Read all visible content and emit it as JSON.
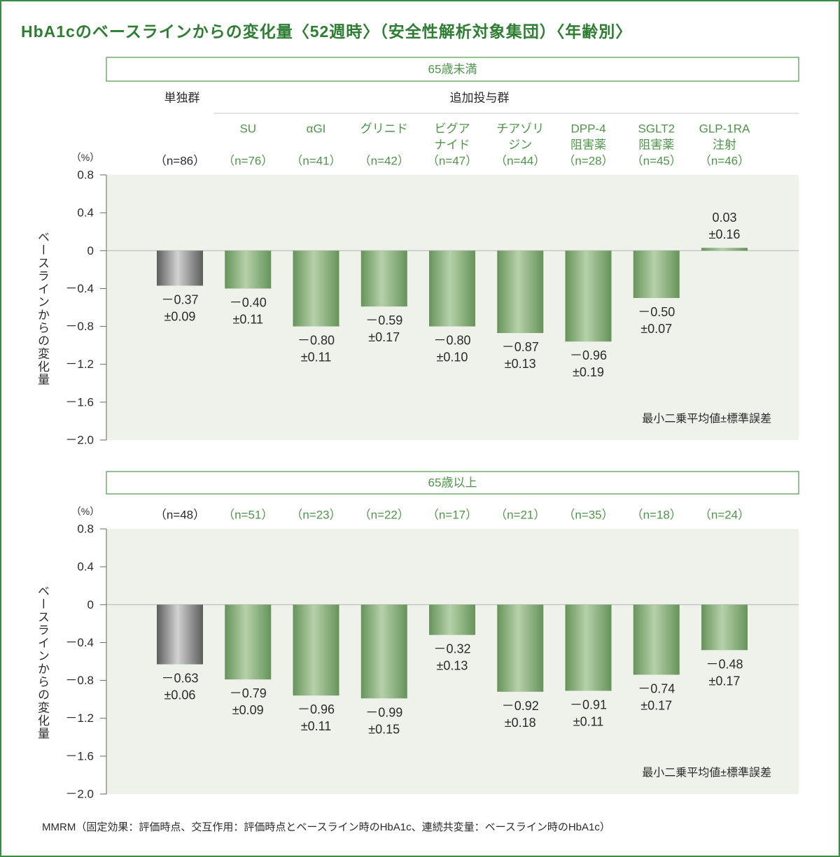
{
  "chart_data": {
    "type": "bar",
    "title": "HbA1cのベースラインからの変化量〈52週時〉（安全性解析対象集団）〈年齢別〉",
    "ylabel": "ベースラインからの変化量",
    "yunit": "（%）",
    "ylim": [
      -2.0,
      0.8
    ],
    "yticks": [
      0.8,
      0.4,
      0,
      -0.4,
      -0.8,
      -1.2,
      -1.6,
      -2.0
    ],
    "ytick_labels": [
      "0.8",
      "0.4",
      "0",
      "－0.4",
      "－0.8",
      "－1.2",
      "－1.6",
      "－2.0"
    ],
    "group_labels": {
      "monotherapy": "単独群",
      "add_on": "追加投与群"
    },
    "categories": [
      [],
      [
        "SU"
      ],
      [
        "αGI"
      ],
      [
        "グリニド"
      ],
      [
        "ビグア",
        "ナイド"
      ],
      [
        "チアゾリ",
        "ジン"
      ],
      [
        "DPP-4",
        "阻害薬"
      ],
      [
        "SGLT2",
        "阻害薬"
      ],
      [
        "GLP-1RA",
        "注射"
      ]
    ],
    "note": "最小二乗平均値±標準誤差",
    "panels": [
      {
        "title": "65歳未満",
        "n_labels": [
          "（n=86）",
          "（n=76）",
          "（n=41）",
          "（n=42）",
          "（n=47）",
          "（n=44）",
          "（n=28）",
          "（n=45）",
          "（n=46）"
        ],
        "values": [
          -0.37,
          -0.4,
          -0.8,
          -0.59,
          -0.8,
          -0.87,
          -0.96,
          -0.5,
          0.03
        ],
        "value_labels": [
          "－0.37",
          "－0.40",
          "－0.80",
          "－0.59",
          "－0.80",
          "－0.87",
          "－0.96",
          "－0.50",
          "0.03"
        ],
        "se_labels": [
          "±0.09",
          "±0.11",
          "±0.11",
          "±0.17",
          "±0.10",
          "±0.13",
          "±0.19",
          "±0.07",
          "±0.16"
        ]
      },
      {
        "title": "65歳以上",
        "n_labels": [
          "（n=48）",
          "（n=51）",
          "（n=23）",
          "（n=22）",
          "（n=17）",
          "（n=21）",
          "（n=35）",
          "（n=18）",
          "（n=24）"
        ],
        "values": [
          -0.63,
          -0.79,
          -0.96,
          -0.99,
          -0.32,
          -0.92,
          -0.91,
          -0.74,
          -0.48
        ],
        "value_labels": [
          "－0.63",
          "－0.79",
          "－0.96",
          "－0.99",
          "－0.32",
          "－0.92",
          "－0.91",
          "－0.74",
          "－0.48"
        ],
        "se_labels": [
          "±0.06",
          "±0.09",
          "±0.11",
          "±0.15",
          "±0.13",
          "±0.18",
          "±0.11",
          "±0.17",
          "±0.17"
        ]
      }
    ]
  },
  "footnote": "MMRM（固定効果：評価時点、交互作用：評価時点とベースライン時のHbA1c、連続共変量：ベースライン時のHbA1c）",
  "colors": {
    "title": "#2e7d32",
    "accent": "#4f944a",
    "frame": "#3b8b45",
    "plot_bg": "#eef2ea",
    "text": "#2b2b2b",
    "bar_green_edge": "#66935a",
    "bar_green_center": "#b6d1aa",
    "bar_gray_edge": "#5c5c5c",
    "bar_gray_center": "#d2d2d2"
  }
}
